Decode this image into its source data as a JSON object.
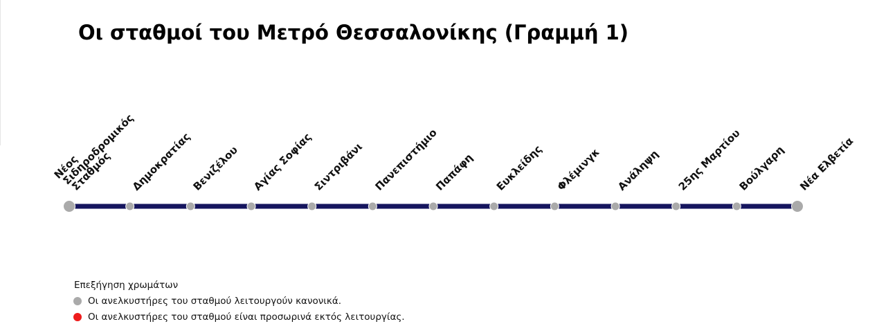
{
  "title": "Οι σταθμοί του Μετρό Θεσσαλονίκης (Γραμμή 1)",
  "line": {
    "color": "#15155e"
  },
  "stations": [
    {
      "label_lines": [
        "Νέος",
        "Σιδηροδρομικός",
        "Σταθμός"
      ],
      "status": "normal",
      "terminal": true
    },
    {
      "label_lines": [
        "Δημοκρατίας"
      ],
      "status": "normal"
    },
    {
      "label_lines": [
        "Βενιζέλου"
      ],
      "status": "normal"
    },
    {
      "label_lines": [
        "Αγίας Σοφίας"
      ],
      "status": "normal"
    },
    {
      "label_lines": [
        "Σιντριβάνι"
      ],
      "status": "normal"
    },
    {
      "label_lines": [
        "Πανεπιστήμιο"
      ],
      "status": "normal"
    },
    {
      "label_lines": [
        "Παπάφη"
      ],
      "status": "normal"
    },
    {
      "label_lines": [
        "Ευκλείδης"
      ],
      "status": "normal"
    },
    {
      "label_lines": [
        "Φλέμινγκ"
      ],
      "status": "normal"
    },
    {
      "label_lines": [
        "Ανάληψη"
      ],
      "status": "normal"
    },
    {
      "label_lines": [
        "25ης Μαρτίου"
      ],
      "status": "normal"
    },
    {
      "label_lines": [
        "Βούλγαρη"
      ],
      "status": "normal"
    },
    {
      "label_lines": [
        "Νέα Ελβετία"
      ],
      "status": "normal",
      "terminal": true
    }
  ],
  "legend": {
    "title": "Επεξήγηση χρωμάτων",
    "items": [
      {
        "status": "normal",
        "color": "#aaaaaa",
        "text": "Οι ανελκυστήρες του σταθμού λειτουργούν κανονικά."
      },
      {
        "status": "out",
        "color": "#ee1c1c",
        "text": "Οι ανελκυστήρες του σταθμού είναι προσωρινά εκτός λειτουργίας."
      }
    ]
  }
}
